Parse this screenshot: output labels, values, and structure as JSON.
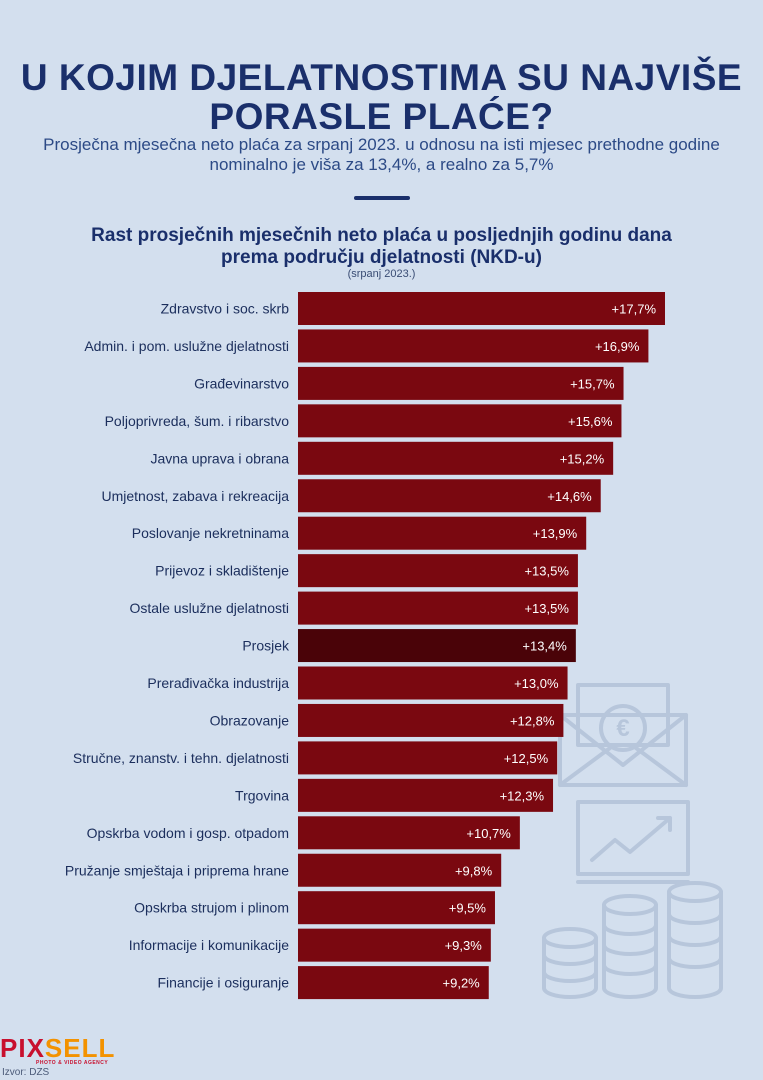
{
  "title_lines": [
    "U KOJIM DJELATNOSTIMA SU NAJVIŠE",
    "PORASLE PLAĆE?"
  ],
  "intro": "Prosječna mjesečna neto plaća za srpanj 2023. u odnosu na isti mjesec prethodne godine nominalno je viša za 13,4%, a realno za 5,7%",
  "logo": {
    "part1": "PIX",
    "part2": "SELL",
    "tagline": "PHOTO & VIDEO AGENCY"
  },
  "source": "Izvor: DZS",
  "colors": {
    "bar": "#7a0810",
    "highlight": "#4a0308",
    "background": "#d3dfee",
    "title": "#1a2f6b"
  },
  "chart_data": {
    "type": "bar",
    "orientation": "horizontal",
    "title_lines": [
      "Rast prosječnih mjesečnih neto plaća u posljednjih godinu dana",
      "prema području djelatnosti (NKD-u)"
    ],
    "subtitle": "(srpanj 2023.)",
    "categories": [
      "Zdravstvo i soc. skrb",
      "Admin. i pom. uslužne djelatnosti",
      "Građevinarstvo",
      "Poljoprivreda, šum. i ribarstvo",
      "Javna uprava i obrana",
      "Umjetnost, zabava i rekreacija",
      "Poslovanje nekretninama",
      "Prijevoz i skladištenje",
      "Ostale uslužne djelatnosti",
      "Prosjek",
      "Prerađivačka industrija",
      "Obrazovanje",
      "Stručne, znanstv. i tehn. djelatnosti",
      "Trgovina",
      "Opskrba vodom i gosp. otpadom",
      "Pružanje smještaja i priprema hrane",
      "Opskrba strujom i plinom",
      "Informacije i komunikacije",
      "Financije i osiguranje"
    ],
    "values": [
      17.7,
      16.9,
      15.7,
      15.6,
      15.2,
      14.6,
      13.9,
      13.5,
      13.5,
      13.4,
      13.0,
      12.8,
      12.5,
      12.3,
      10.7,
      9.8,
      9.5,
      9.3,
      9.2
    ],
    "value_labels": [
      "+17,7%",
      "+16,9%",
      "+15,7%",
      "+15,6%",
      "+15,2%",
      "+14,6%",
      "+13,9%",
      "+13,5%",
      "+13,5%",
      "+13,4%",
      "+13,0%",
      "+12,8%",
      "+12,5%",
      "+12,3%",
      "+10,7%",
      "+9,8%",
      "+9,5%",
      "+9,3%",
      "+9,2%"
    ],
    "highlight_category": "Prosjek",
    "xlim": [
      0,
      17.7
    ],
    "grid": false,
    "legend": "none"
  }
}
